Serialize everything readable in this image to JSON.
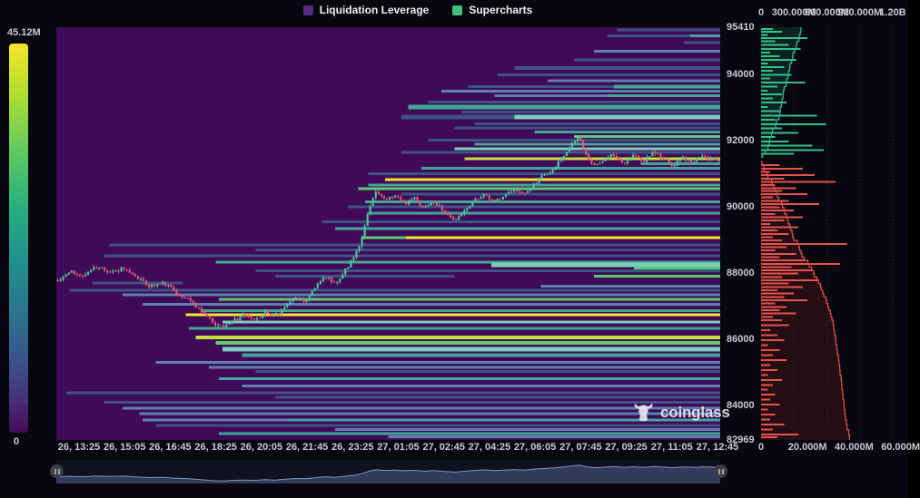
{
  "legend": {
    "items": [
      {
        "label": "Liquidation Leverage",
        "color": "#532b80"
      },
      {
        "label": "Supercharts",
        "color": "#3fbf7e"
      }
    ]
  },
  "colorbar": {
    "max_label": "45.12M",
    "min_label": "0"
  },
  "watermark": {
    "text": "coinglass"
  },
  "chart_data": {
    "type": "heatmap",
    "title": "Liquidation Leverage",
    "series_labels": [
      "Liquidation Leverage",
      "Supercharts"
    ],
    "colorbar_scale": {
      "max": "45.12M",
      "min": "0"
    },
    "background": "#410a58",
    "price_axis": {
      "min": 82969,
      "max": 95410,
      "ticks": [
        "95410",
        "94000",
        "92000",
        "90000",
        "88000",
        "86000",
        "84000",
        "82969"
      ],
      "tick_values": [
        95410,
        94000,
        92000,
        90000,
        88000,
        86000,
        84000,
        82969
      ]
    },
    "time_ticks": [
      "26, 13:25",
      "26, 15:05",
      "26, 16:45",
      "26, 18:25",
      "26, 20:05",
      "26, 21:45",
      "26, 23:25",
      "27, 01:05",
      "27, 02:45",
      "27, 04:25",
      "27, 06:05",
      "27, 07:45",
      "27, 09:25",
      "27, 11:05",
      "27, 12:45"
    ],
    "candle_colors": {
      "up": "#4fc2a0",
      "down": "#e05a6e"
    },
    "palette": {
      "d": "#3d5385",
      "b": "#5c81ad",
      "t": "#40a794",
      "lt": "#7ecdbc",
      "g": "#5fc873",
      "yg": "#c3de3d",
      "y": "#f3e52e"
    },
    "price_path": [
      [
        0,
        87800
      ],
      [
        0.02,
        88050
      ],
      [
        0.04,
        87900
      ],
      [
        0.06,
        88200
      ],
      [
        0.08,
        88000
      ],
      [
        0.1,
        88150
      ],
      [
        0.12,
        87850
      ],
      [
        0.14,
        87600
      ],
      [
        0.16,
        87700
      ],
      [
        0.18,
        87400
      ],
      [
        0.2,
        87150
      ],
      [
        0.22,
        86800
      ],
      [
        0.235,
        86500
      ],
      [
        0.25,
        86350
      ],
      [
        0.265,
        86550
      ],
      [
        0.28,
        86700
      ],
      [
        0.3,
        86600
      ],
      [
        0.315,
        86850
      ],
      [
        0.33,
        86700
      ],
      [
        0.345,
        87000
      ],
      [
        0.36,
        87250
      ],
      [
        0.375,
        87150
      ],
      [
        0.39,
        87550
      ],
      [
        0.405,
        87900
      ],
      [
        0.42,
        87650
      ],
      [
        0.435,
        88100
      ],
      [
        0.45,
        88500
      ],
      [
        0.462,
        89200
      ],
      [
        0.472,
        90050
      ],
      [
        0.482,
        90450
      ],
      [
        0.495,
        90200
      ],
      [
        0.51,
        90350
      ],
      [
        0.525,
        90100
      ],
      [
        0.54,
        90250
      ],
      [
        0.555,
        89950
      ],
      [
        0.57,
        90150
      ],
      [
        0.585,
        89850
      ],
      [
        0.6,
        89600
      ],
      [
        0.615,
        89900
      ],
      [
        0.63,
        90200
      ],
      [
        0.645,
        90400
      ],
      [
        0.66,
        90150
      ],
      [
        0.675,
        90300
      ],
      [
        0.69,
        90550
      ],
      [
        0.705,
        90350
      ],
      [
        0.72,
        90700
      ],
      [
        0.735,
        90950
      ],
      [
        0.75,
        91150
      ],
      [
        0.765,
        91500
      ],
      [
        0.778,
        91950
      ],
      [
        0.788,
        92100
      ],
      [
        0.8,
        91550
      ],
      [
        0.81,
        91200
      ],
      [
        0.825,
        91400
      ],
      [
        0.84,
        91600
      ],
      [
        0.855,
        91300
      ],
      [
        0.87,
        91550
      ],
      [
        0.885,
        91350
      ],
      [
        0.9,
        91650
      ],
      [
        0.915,
        91450
      ],
      [
        0.93,
        91250
      ],
      [
        0.945,
        91500
      ],
      [
        0.96,
        91350
      ],
      [
        0.975,
        91500
      ],
      [
        1,
        91400
      ]
    ],
    "liquidation_bands": [
      [
        95330,
        0.845,
        1,
        "d",
        3
      ],
      [
        95150,
        0.83,
        1,
        "d",
        3
      ],
      [
        95150,
        0.955,
        1,
        "t",
        3
      ],
      [
        94950,
        0.945,
        1,
        "d",
        3
      ],
      [
        94680,
        0.81,
        1,
        "b",
        3
      ],
      [
        94430,
        0.78,
        1,
        "d",
        3
      ],
      [
        94180,
        0.69,
        1,
        "d",
        4
      ],
      [
        93980,
        0.665,
        1,
        "d",
        3
      ],
      [
        93800,
        0.74,
        1,
        "b",
        3
      ],
      [
        93620,
        0.62,
        1,
        "d",
        3
      ],
      [
        93620,
        0.84,
        1,
        "t",
        4
      ],
      [
        93480,
        0.58,
        1,
        "b",
        3
      ],
      [
        93340,
        0.66,
        1,
        "b",
        3
      ],
      [
        93340,
        0.83,
        1,
        "t",
        3
      ],
      [
        93150,
        0.56,
        1,
        "d",
        3
      ],
      [
        93000,
        0.53,
        1,
        "t",
        5
      ],
      [
        92850,
        0.61,
        1,
        "d",
        3
      ],
      [
        92700,
        0.52,
        0.69,
        "d",
        5
      ],
      [
        92700,
        0.69,
        1,
        "lt",
        5
      ],
      [
        92500,
        0.63,
        1,
        "d",
        3
      ],
      [
        92380,
        0.6,
        1,
        "d",
        3
      ],
      [
        92250,
        0.72,
        1,
        "t",
        3
      ],
      [
        92120,
        0.78,
        1,
        "g",
        3
      ],
      [
        92000,
        0.56,
        1,
        "d",
        3
      ],
      [
        91880,
        0.63,
        1,
        "t",
        3
      ],
      [
        91740,
        0.6,
        1,
        "lt",
        3
      ],
      [
        91640,
        0.52,
        1,
        "d",
        3
      ],
      [
        91450,
        0.615,
        1,
        "yg",
        3
      ],
      [
        91300,
        0.88,
        1,
        "t",
        3
      ],
      [
        91160,
        0.55,
        1,
        "t",
        3
      ],
      [
        91000,
        0.47,
        1,
        "d",
        3
      ],
      [
        90820,
        0.495,
        1,
        "y",
        3
      ],
      [
        90650,
        0.47,
        1,
        "t",
        3
      ],
      [
        90540,
        0.455,
        1,
        "g",
        3
      ],
      [
        90380,
        0.52,
        1,
        "d",
        3
      ],
      [
        90150,
        0.465,
        1,
        "t",
        3
      ],
      [
        90000,
        0.44,
        1,
        "d",
        3
      ],
      [
        89800,
        0.47,
        1,
        "t",
        3
      ],
      [
        89550,
        0.4,
        1,
        "d",
        3
      ],
      [
        89340,
        0.42,
        1,
        "t",
        3
      ],
      [
        89070,
        0.46,
        0.527,
        "g",
        3
      ],
      [
        89070,
        0.527,
        1,
        "y",
        3
      ],
      [
        88850,
        0.08,
        1,
        "d",
        3
      ],
      [
        88700,
        0.3,
        1,
        "d",
        3
      ],
      [
        88520,
        0.072,
        1,
        "d",
        3
      ],
      [
        88330,
        0.24,
        1,
        "t",
        3
      ],
      [
        88250,
        0.655,
        1,
        "lt",
        5
      ],
      [
        88150,
        0.87,
        1,
        "g",
        3
      ],
      [
        88070,
        0.3,
        1,
        "d",
        3
      ],
      [
        87900,
        0.33,
        0.6,
        "d",
        3
      ],
      [
        87900,
        0.81,
        1,
        "g",
        3
      ],
      [
        87700,
        0.055,
        0.19,
        "d",
        3
      ],
      [
        87600,
        0.73,
        1,
        "b",
        3
      ],
      [
        87480,
        0.02,
        1,
        "d",
        3
      ],
      [
        87350,
        0.1,
        1,
        "b",
        3
      ],
      [
        87210,
        0.245,
        1,
        "g",
        3
      ],
      [
        87060,
        0.13,
        1,
        "b",
        3
      ],
      [
        86860,
        0.22,
        1,
        "t",
        3
      ],
      [
        86740,
        0.195,
        1,
        "y",
        3
      ],
      [
        86520,
        0.25,
        1,
        "lt",
        3
      ],
      [
        86330,
        0.2,
        1,
        "t",
        3
      ],
      [
        86060,
        0.21,
        1,
        "yg",
        4
      ],
      [
        85900,
        0.24,
        1,
        "g",
        4
      ],
      [
        85700,
        0.25,
        1,
        "lt",
        5
      ],
      [
        85520,
        0.28,
        1,
        "t",
        4
      ],
      [
        85300,
        0.15,
        1,
        "b",
        3
      ],
      [
        85150,
        0.23,
        1,
        "b",
        3
      ],
      [
        85040,
        0.3,
        1,
        "d",
        3
      ],
      [
        84820,
        0.245,
        1,
        "t",
        3
      ],
      [
        84600,
        0.28,
        1,
        "b",
        3
      ],
      [
        84390,
        0.015,
        1,
        "d",
        3
      ],
      [
        84250,
        0.33,
        1,
        "d",
        3
      ],
      [
        84110,
        0.072,
        1,
        "d",
        3
      ],
      [
        83920,
        0.1,
        1,
        "b",
        3
      ],
      [
        83760,
        0.125,
        1,
        "b",
        3
      ],
      [
        83570,
        0.13,
        0.35,
        "b",
        3
      ],
      [
        83570,
        0.35,
        1,
        "t",
        3
      ],
      [
        83400,
        0.15,
        1,
        "d",
        3
      ],
      [
        83280,
        0.42,
        1,
        "b",
        3
      ],
      [
        83160,
        0.245,
        1,
        "t",
        3
      ],
      [
        83060,
        0.5,
        1,
        "b",
        3
      ]
    ],
    "depth_panel": {
      "top_axis": [
        {
          "label": "0",
          "value_m": 0
        },
        {
          "label": "300.000M",
          "value_m": 300
        },
        {
          "label": "600.000M",
          "value_m": 600
        },
        {
          "label": "900.000M",
          "value_m": 900
        },
        {
          "label": "1.20B",
          "value_m": 1200
        }
      ],
      "bottom_axis": [
        {
          "label": "0",
          "value_m": 0
        },
        {
          "label": "20.000M",
          "value_m": 20
        },
        {
          "label": "40.000M",
          "value_m": 40
        },
        {
          "label": "60.000M",
          "value_m": 60
        }
      ],
      "colors": {
        "ask": "#35c08c",
        "bid": "#e4534b",
        "ask_fill": "rgba(40,150,110,0.20)",
        "bid_fill": "rgba(195,55,48,0.16)"
      },
      "asks_m": [
        [
          95350,
          5
        ],
        [
          95270,
          9
        ],
        [
          95180,
          3
        ],
        [
          95080,
          20
        ],
        [
          94980,
          6
        ],
        [
          94870,
          12
        ],
        [
          94760,
          17
        ],
        [
          94650,
          4
        ],
        [
          94540,
          8
        ],
        [
          94430,
          15
        ],
        [
          94320,
          3
        ],
        [
          94210,
          10
        ],
        [
          94100,
          5
        ],
        [
          93980,
          13
        ],
        [
          93860,
          4
        ],
        [
          93740,
          19
        ],
        [
          93620,
          7
        ],
        [
          93500,
          3
        ],
        [
          93380,
          9
        ],
        [
          93260,
          5
        ],
        [
          93140,
          11
        ],
        [
          93010,
          3
        ],
        [
          92880,
          8
        ],
        [
          92750,
          24
        ],
        [
          92620,
          6
        ],
        [
          92490,
          28
        ],
        [
          92360,
          9
        ],
        [
          92230,
          16
        ],
        [
          92100,
          6
        ],
        [
          91970,
          12
        ],
        [
          91840,
          22
        ],
        [
          91700,
          27
        ],
        [
          91600,
          14
        ]
      ],
      "bids_m": [
        [
          91250,
          8
        ],
        [
          91150,
          18
        ],
        [
          91050,
          4
        ],
        [
          90950,
          23
        ],
        [
          90850,
          10
        ],
        [
          90750,
          32
        ],
        [
          90650,
          6
        ],
        [
          90560,
          15
        ],
        [
          90470,
          9
        ],
        [
          90380,
          20
        ],
        [
          90280,
          5
        ],
        [
          90180,
          12
        ],
        [
          90080,
          25
        ],
        [
          89980,
          8
        ],
        [
          89880,
          14
        ],
        [
          89780,
          6
        ],
        [
          89680,
          18
        ],
        [
          89580,
          10
        ],
        [
          89480,
          4
        ],
        [
          89380,
          16
        ],
        [
          89280,
          7
        ],
        [
          89180,
          12
        ],
        [
          89080,
          5
        ],
        [
          88980,
          9
        ],
        [
          88880,
          37
        ],
        [
          88780,
          11
        ],
        [
          88680,
          6
        ],
        [
          88580,
          15
        ],
        [
          88480,
          8
        ],
        [
          88380,
          19
        ],
        [
          88280,
          34
        ],
        [
          88180,
          13
        ],
        [
          88080,
          22
        ],
        [
          87980,
          16
        ],
        [
          87880,
          9
        ],
        [
          87780,
          25
        ],
        [
          87680,
          12
        ],
        [
          87580,
          18
        ],
        [
          87480,
          7
        ],
        [
          87380,
          14
        ],
        [
          87280,
          10
        ],
        [
          87180,
          20
        ],
        [
          87080,
          6
        ],
        [
          86980,
          11
        ],
        [
          86880,
          8
        ],
        [
          86780,
          15
        ],
        [
          86680,
          5
        ],
        [
          86580,
          9
        ],
        [
          86430,
          12
        ],
        [
          86280,
          4
        ],
        [
          86130,
          7
        ],
        [
          85980,
          10
        ],
        [
          85830,
          3
        ],
        [
          85680,
          8
        ],
        [
          85530,
          5
        ],
        [
          85380,
          11
        ],
        [
          85230,
          4
        ],
        [
          85080,
          7
        ],
        [
          84930,
          3
        ],
        [
          84780,
          9
        ],
        [
          84630,
          5
        ],
        [
          84480,
          3
        ],
        [
          84330,
          6
        ],
        [
          84180,
          4
        ],
        [
          84030,
          8
        ],
        [
          83880,
          3
        ],
        [
          83730,
          6
        ],
        [
          83580,
          4
        ],
        [
          83430,
          10
        ],
        [
          83280,
          5
        ],
        [
          83130,
          16
        ],
        [
          83050,
          7
        ]
      ]
    },
    "navigator": {
      "price_min": 86100,
      "price_max": 92400
    }
  }
}
